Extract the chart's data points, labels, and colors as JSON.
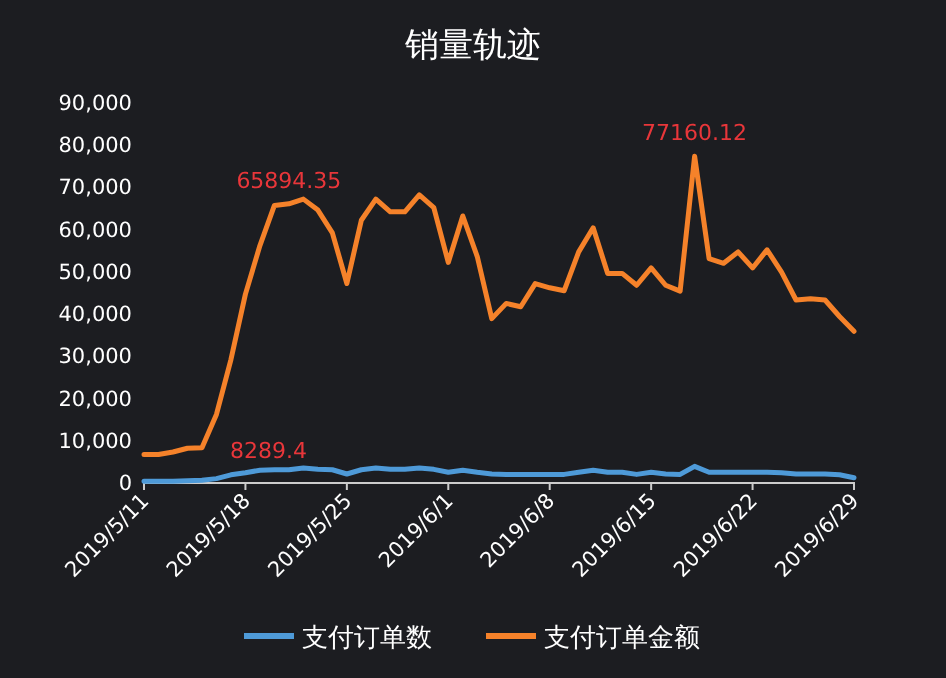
{
  "chart_data": {
    "type": "line",
    "title": "销量轨迹",
    "x": [
      "2019-05-11",
      "2019-05-12",
      "2019-05-13",
      "2019-05-14",
      "2019-05-15",
      "2019-05-16",
      "2019-05-17",
      "2019-05-18",
      "2019-05-19",
      "2019-05-20",
      "2019-05-21",
      "2019-05-22",
      "2019-05-23",
      "2019-05-24",
      "2019-05-25",
      "2019-05-26",
      "2019-05-27",
      "2019-05-28",
      "2019-05-29",
      "2019-05-30",
      "2019-05-31",
      "2019-06-01",
      "2019-06-02",
      "2019-06-03",
      "2019-06-04",
      "2019-06-05",
      "2019-06-06",
      "2019-06-07",
      "2019-06-08",
      "2019-06-09",
      "2019-06-10",
      "2019-06-11",
      "2019-06-12",
      "2019-06-13",
      "2019-06-14",
      "2019-06-15",
      "2019-06-16",
      "2019-06-17",
      "2019-06-18",
      "2019-06-19",
      "2019-06-20",
      "2019-06-21",
      "2019-06-22",
      "2019-06-23",
      "2019-06-24",
      "2019-06-25",
      "2019-06-26",
      "2019-06-27",
      "2019-06-28",
      "2019-06-29"
    ],
    "series": [
      {
        "name": "支付订单数",
        "color": "#4e9ad8",
        "values": [
          200,
          200,
          200,
          300,
          400,
          800,
          1700,
          2200,
          2800,
          2900,
          2900,
          3300,
          3000,
          2900,
          1900,
          2900,
          3300,
          3000,
          3000,
          3300,
          3000,
          2300,
          2800,
          2300,
          1900,
          1800,
          1800,
          1800,
          1800,
          1800,
          2300,
          2800,
          2300,
          2300,
          1800,
          2300,
          1900,
          1800,
          3700,
          2300,
          2300,
          2300,
          2300,
          2300,
          2200,
          1900,
          1900,
          1900,
          1700,
          1000
        ]
      },
      {
        "name": "支付订单金额",
        "color": "#f5822a",
        "values": [
          6500,
          6500,
          7100,
          8000,
          8100,
          16000,
          29000,
          44500,
          56000,
          65500,
          65894.35,
          67000,
          64400,
          59000,
          47000,
          62000,
          67000,
          64000,
          64000,
          68000,
          65000,
          52000,
          63000,
          53400,
          38700,
          42300,
          41500,
          47000,
          46000,
          45300,
          54500,
          60200,
          49400,
          49400,
          46600,
          50700,
          46600,
          45200,
          77160.12,
          52900,
          51800,
          54500,
          50700,
          55000,
          49700,
          43100,
          43400,
          43100,
          39200,
          35700
        ]
      }
    ],
    "xlim": [
      "2019-05-11",
      "2019-06-29"
    ],
    "xticks": [
      {
        "value": "2019-05-11",
        "label": "2019/5/11"
      },
      {
        "value": "2019-05-18",
        "label": "2019/5/18"
      },
      {
        "value": "2019-05-25",
        "label": "2019/5/25"
      },
      {
        "value": "2019-06-01",
        "label": "2019/6/1"
      },
      {
        "value": "2019-06-08",
        "label": "2019/6/8"
      },
      {
        "value": "2019-06-15",
        "label": "2019/6/15"
      },
      {
        "value": "2019-06-22",
        "label": "2019/6/22"
      },
      {
        "value": "2019-06-29",
        "label": "2019/6/29"
      }
    ],
    "ylim": [
      0,
      90000
    ],
    "yticks": [
      {
        "value": 0,
        "label": "0"
      },
      {
        "value": 10000,
        "label": "10,000"
      },
      {
        "value": 20000,
        "label": "20,000"
      },
      {
        "value": 30000,
        "label": "30,000"
      },
      {
        "value": 40000,
        "label": "40,000"
      },
      {
        "value": 50000,
        "label": "50,000"
      },
      {
        "value": 60000,
        "label": "60,000"
      },
      {
        "value": 70000,
        "label": "70,000"
      },
      {
        "value": 80000,
        "label": "80,000"
      },
      {
        "value": 90000,
        "label": "90,000"
      }
    ],
    "annotations": [
      {
        "text": "65894.35",
        "x": "2019-05-21",
        "y": 65894.35
      },
      "8289.4",
      {
        "text": "77160.12",
        "x": "2019-06-18",
        "y": 77160.12
      }
    ],
    "grid": false,
    "legend": "bottom",
    "marker": "none",
    "line_style": "solid"
  }
}
